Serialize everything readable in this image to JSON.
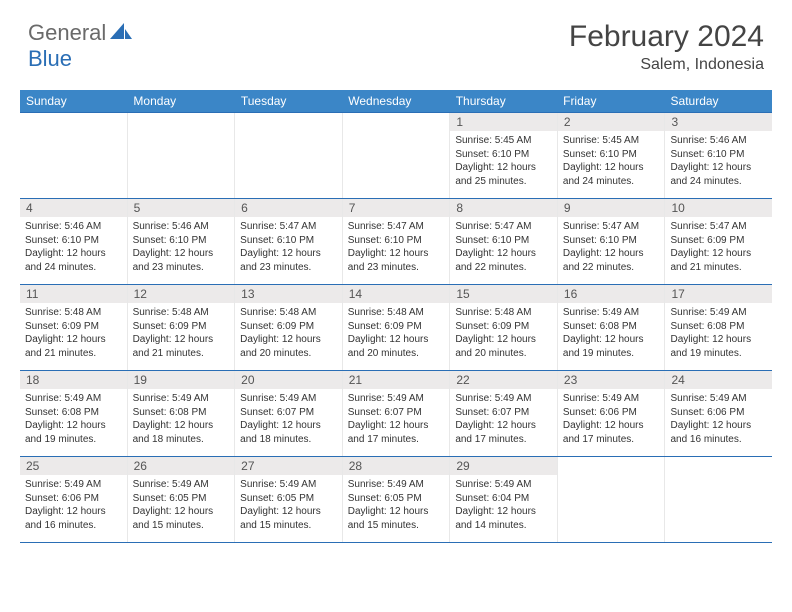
{
  "logo": {
    "general": "General",
    "blue": "Blue"
  },
  "title": "February 2024",
  "location": "Salem, Indonesia",
  "weekdays": [
    "Sunday",
    "Monday",
    "Tuesday",
    "Wednesday",
    "Thursday",
    "Friday",
    "Saturday"
  ],
  "colors": {
    "header_bar": "#3b86c7",
    "week_border": "#2a6eb5",
    "daynum_bg": "#eceaea"
  },
  "weeks": [
    [
      {
        "num": "",
        "sunrise": "",
        "sunset": "",
        "daylight1": "",
        "daylight2": ""
      },
      {
        "num": "",
        "sunrise": "",
        "sunset": "",
        "daylight1": "",
        "daylight2": ""
      },
      {
        "num": "",
        "sunrise": "",
        "sunset": "",
        "daylight1": "",
        "daylight2": ""
      },
      {
        "num": "",
        "sunrise": "",
        "sunset": "",
        "daylight1": "",
        "daylight2": ""
      },
      {
        "num": "1",
        "sunrise": "Sunrise: 5:45 AM",
        "sunset": "Sunset: 6:10 PM",
        "daylight1": "Daylight: 12 hours",
        "daylight2": "and 25 minutes."
      },
      {
        "num": "2",
        "sunrise": "Sunrise: 5:45 AM",
        "sunset": "Sunset: 6:10 PM",
        "daylight1": "Daylight: 12 hours",
        "daylight2": "and 24 minutes."
      },
      {
        "num": "3",
        "sunrise": "Sunrise: 5:46 AM",
        "sunset": "Sunset: 6:10 PM",
        "daylight1": "Daylight: 12 hours",
        "daylight2": "and 24 minutes."
      }
    ],
    [
      {
        "num": "4",
        "sunrise": "Sunrise: 5:46 AM",
        "sunset": "Sunset: 6:10 PM",
        "daylight1": "Daylight: 12 hours",
        "daylight2": "and 24 minutes."
      },
      {
        "num": "5",
        "sunrise": "Sunrise: 5:46 AM",
        "sunset": "Sunset: 6:10 PM",
        "daylight1": "Daylight: 12 hours",
        "daylight2": "and 23 minutes."
      },
      {
        "num": "6",
        "sunrise": "Sunrise: 5:47 AM",
        "sunset": "Sunset: 6:10 PM",
        "daylight1": "Daylight: 12 hours",
        "daylight2": "and 23 minutes."
      },
      {
        "num": "7",
        "sunrise": "Sunrise: 5:47 AM",
        "sunset": "Sunset: 6:10 PM",
        "daylight1": "Daylight: 12 hours",
        "daylight2": "and 23 minutes."
      },
      {
        "num": "8",
        "sunrise": "Sunrise: 5:47 AM",
        "sunset": "Sunset: 6:10 PM",
        "daylight1": "Daylight: 12 hours",
        "daylight2": "and 22 minutes."
      },
      {
        "num": "9",
        "sunrise": "Sunrise: 5:47 AM",
        "sunset": "Sunset: 6:10 PM",
        "daylight1": "Daylight: 12 hours",
        "daylight2": "and 22 minutes."
      },
      {
        "num": "10",
        "sunrise": "Sunrise: 5:47 AM",
        "sunset": "Sunset: 6:09 PM",
        "daylight1": "Daylight: 12 hours",
        "daylight2": "and 21 minutes."
      }
    ],
    [
      {
        "num": "11",
        "sunrise": "Sunrise: 5:48 AM",
        "sunset": "Sunset: 6:09 PM",
        "daylight1": "Daylight: 12 hours",
        "daylight2": "and 21 minutes."
      },
      {
        "num": "12",
        "sunrise": "Sunrise: 5:48 AM",
        "sunset": "Sunset: 6:09 PM",
        "daylight1": "Daylight: 12 hours",
        "daylight2": "and 21 minutes."
      },
      {
        "num": "13",
        "sunrise": "Sunrise: 5:48 AM",
        "sunset": "Sunset: 6:09 PM",
        "daylight1": "Daylight: 12 hours",
        "daylight2": "and 20 minutes."
      },
      {
        "num": "14",
        "sunrise": "Sunrise: 5:48 AM",
        "sunset": "Sunset: 6:09 PM",
        "daylight1": "Daylight: 12 hours",
        "daylight2": "and 20 minutes."
      },
      {
        "num": "15",
        "sunrise": "Sunrise: 5:48 AM",
        "sunset": "Sunset: 6:09 PM",
        "daylight1": "Daylight: 12 hours",
        "daylight2": "and 20 minutes."
      },
      {
        "num": "16",
        "sunrise": "Sunrise: 5:49 AM",
        "sunset": "Sunset: 6:08 PM",
        "daylight1": "Daylight: 12 hours",
        "daylight2": "and 19 minutes."
      },
      {
        "num": "17",
        "sunrise": "Sunrise: 5:49 AM",
        "sunset": "Sunset: 6:08 PM",
        "daylight1": "Daylight: 12 hours",
        "daylight2": "and 19 minutes."
      }
    ],
    [
      {
        "num": "18",
        "sunrise": "Sunrise: 5:49 AM",
        "sunset": "Sunset: 6:08 PM",
        "daylight1": "Daylight: 12 hours",
        "daylight2": "and 19 minutes."
      },
      {
        "num": "19",
        "sunrise": "Sunrise: 5:49 AM",
        "sunset": "Sunset: 6:08 PM",
        "daylight1": "Daylight: 12 hours",
        "daylight2": "and 18 minutes."
      },
      {
        "num": "20",
        "sunrise": "Sunrise: 5:49 AM",
        "sunset": "Sunset: 6:07 PM",
        "daylight1": "Daylight: 12 hours",
        "daylight2": "and 18 minutes."
      },
      {
        "num": "21",
        "sunrise": "Sunrise: 5:49 AM",
        "sunset": "Sunset: 6:07 PM",
        "daylight1": "Daylight: 12 hours",
        "daylight2": "and 17 minutes."
      },
      {
        "num": "22",
        "sunrise": "Sunrise: 5:49 AM",
        "sunset": "Sunset: 6:07 PM",
        "daylight1": "Daylight: 12 hours",
        "daylight2": "and 17 minutes."
      },
      {
        "num": "23",
        "sunrise": "Sunrise: 5:49 AM",
        "sunset": "Sunset: 6:06 PM",
        "daylight1": "Daylight: 12 hours",
        "daylight2": "and 17 minutes."
      },
      {
        "num": "24",
        "sunrise": "Sunrise: 5:49 AM",
        "sunset": "Sunset: 6:06 PM",
        "daylight1": "Daylight: 12 hours",
        "daylight2": "and 16 minutes."
      }
    ],
    [
      {
        "num": "25",
        "sunrise": "Sunrise: 5:49 AM",
        "sunset": "Sunset: 6:06 PM",
        "daylight1": "Daylight: 12 hours",
        "daylight2": "and 16 minutes."
      },
      {
        "num": "26",
        "sunrise": "Sunrise: 5:49 AM",
        "sunset": "Sunset: 6:05 PM",
        "daylight1": "Daylight: 12 hours",
        "daylight2": "and 15 minutes."
      },
      {
        "num": "27",
        "sunrise": "Sunrise: 5:49 AM",
        "sunset": "Sunset: 6:05 PM",
        "daylight1": "Daylight: 12 hours",
        "daylight2": "and 15 minutes."
      },
      {
        "num": "28",
        "sunrise": "Sunrise: 5:49 AM",
        "sunset": "Sunset: 6:05 PM",
        "daylight1": "Daylight: 12 hours",
        "daylight2": "and 15 minutes."
      },
      {
        "num": "29",
        "sunrise": "Sunrise: 5:49 AM",
        "sunset": "Sunset: 6:04 PM",
        "daylight1": "Daylight: 12 hours",
        "daylight2": "and 14 minutes."
      },
      {
        "num": "",
        "sunrise": "",
        "sunset": "",
        "daylight1": "",
        "daylight2": ""
      },
      {
        "num": "",
        "sunrise": "",
        "sunset": "",
        "daylight1": "",
        "daylight2": ""
      }
    ]
  ]
}
